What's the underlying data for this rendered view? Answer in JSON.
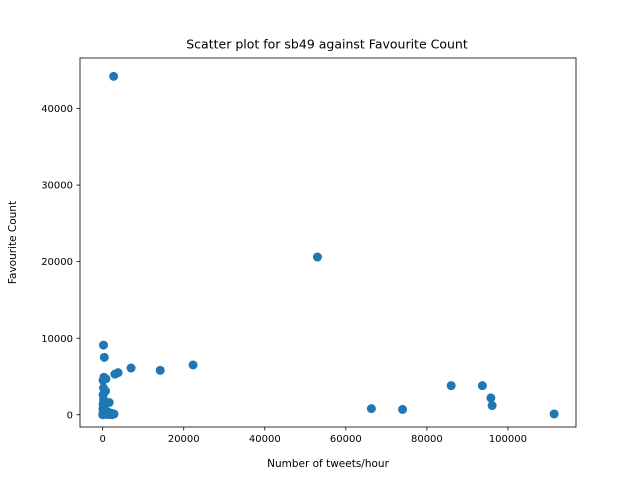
{
  "chart_data": {
    "type": "scatter",
    "title": "Scatter plot for sb49 against Favourite Count",
    "xlabel": "Number of tweets/hour",
    "ylabel": "Favourite Count",
    "xlim": [
      -5600,
      116800
    ],
    "ylim": [
      -1600,
      46600
    ],
    "xticks": [
      0,
      20000,
      40000,
      60000,
      80000,
      100000
    ],
    "yticks": [
      0,
      10000,
      20000,
      30000,
      40000
    ],
    "grid": false,
    "marker_color": "#1f77b4",
    "points": [
      {
        "x": 2700,
        "y": 44200
      },
      {
        "x": 53000,
        "y": 20600
      },
      {
        "x": 200,
        "y": 9100
      },
      {
        "x": 400,
        "y": 7500
      },
      {
        "x": 22300,
        "y": 6500
      },
      {
        "x": 7000,
        "y": 6100
      },
      {
        "x": 14200,
        "y": 5800
      },
      {
        "x": 3800,
        "y": 5500
      },
      {
        "x": 3000,
        "y": 5300
      },
      {
        "x": 300,
        "y": 4900
      },
      {
        "x": 800,
        "y": 4700
      },
      {
        "x": 100,
        "y": 4500
      },
      {
        "x": 200,
        "y": 3500
      },
      {
        "x": 700,
        "y": 3100
      },
      {
        "x": 100,
        "y": 2600
      },
      {
        "x": 200,
        "y": 2000
      },
      {
        "x": 1600,
        "y": 1600
      },
      {
        "x": 100,
        "y": 1400
      },
      {
        "x": 300,
        "y": 1100
      },
      {
        "x": 50,
        "y": 800
      },
      {
        "x": 600,
        "y": 600
      },
      {
        "x": 1200,
        "y": 400
      },
      {
        "x": 100,
        "y": 300
      },
      {
        "x": 2100,
        "y": 200
      },
      {
        "x": 2800,
        "y": 100
      },
      {
        "x": 400,
        "y": 100
      },
      {
        "x": 900,
        "y": 50
      },
      {
        "x": 1500,
        "y": 30
      },
      {
        "x": 0,
        "y": 0
      },
      {
        "x": 2300,
        "y": 0
      },
      {
        "x": 66300,
        "y": 800
      },
      {
        "x": 74000,
        "y": 700
      },
      {
        "x": 86000,
        "y": 3800
      },
      {
        "x": 93700,
        "y": 3800
      },
      {
        "x": 95800,
        "y": 2200
      },
      {
        "x": 96100,
        "y": 1200
      },
      {
        "x": 111400,
        "y": 100
      }
    ]
  }
}
